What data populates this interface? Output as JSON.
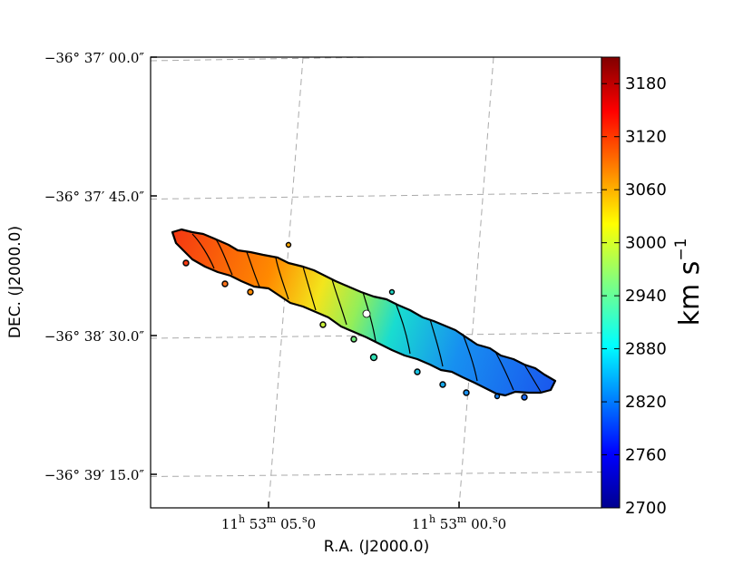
{
  "chart_data": {
    "type": "heatmap",
    "title": "",
    "xlabel": "R.A. (J2000.0)",
    "ylabel": "DEC. (J2000.0)",
    "x_ticks": [
      {
        "h": "11",
        "m": "53",
        "s": "05.0"
      },
      {
        "h": "11",
        "m": "53",
        "s": "00.0"
      }
    ],
    "y_ticks": [
      "−36° 37′ 00.0″",
      "−36° 37′ 45.0″",
      "−36° 38′ 30.0″",
      "−36° 39′ 15.0″"
    ],
    "grid": true,
    "colorbar": {
      "label_main": "km s",
      "label_exp": "−1",
      "min": 2700,
      "max": 3210,
      "ticks": [
        "3180",
        "3120",
        "3060",
        "3000",
        "2940",
        "2880",
        "2820",
        "2760",
        "2700"
      ],
      "colormap": "jet"
    },
    "velocity_along_disk": [
      {
        "position": 0.0,
        "velocity": 3125
      },
      {
        "position": 0.25,
        "velocity": 3070
      },
      {
        "position": 0.4,
        "velocity": 2990
      },
      {
        "position": 0.5,
        "velocity": 2930
      },
      {
        "position": 0.6,
        "velocity": 2880
      },
      {
        "position": 0.75,
        "velocity": 2830
      },
      {
        "position": 1.0,
        "velocity": 2780
      }
    ]
  }
}
